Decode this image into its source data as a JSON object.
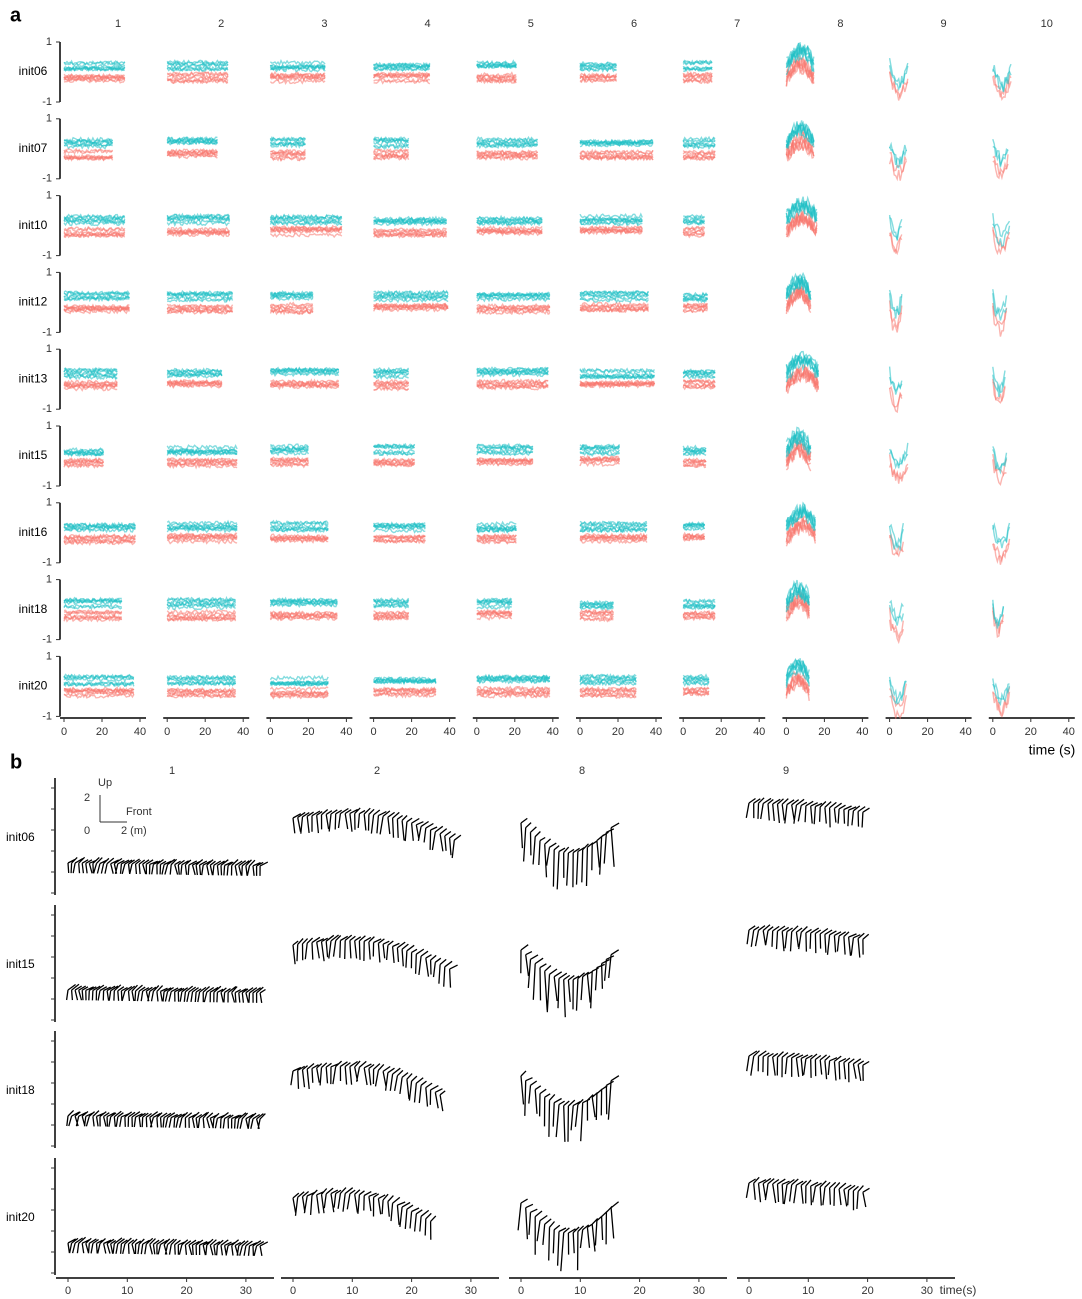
{
  "panel_a": {
    "label": "a",
    "columns": [
      "1",
      "2",
      "3",
      "4",
      "5",
      "6",
      "7",
      "8",
      "9",
      "10"
    ],
    "rows": [
      "init06",
      "init07",
      "init10",
      "init12",
      "init13",
      "init15",
      "init16",
      "init18",
      "init20"
    ],
    "y_ticks": [
      1,
      -1
    ],
    "x_ticks": [
      0,
      20,
      40
    ],
    "x_axis_title": "time (s)"
  },
  "panel_b": {
    "label": "b",
    "columns": [
      "1",
      "2",
      "8",
      "9"
    ],
    "rows": [
      "init06",
      "init15",
      "init18",
      "init20"
    ],
    "x_ticks": [
      0,
      10,
      20,
      30
    ],
    "x_axis_title": "time(s)",
    "scale_bar": {
      "vertical_label": "Up",
      "horizontal_label": "Front",
      "vertical_value": 2,
      "origin": 0,
      "horizontal_value": "2 (m)"
    }
  }
}
